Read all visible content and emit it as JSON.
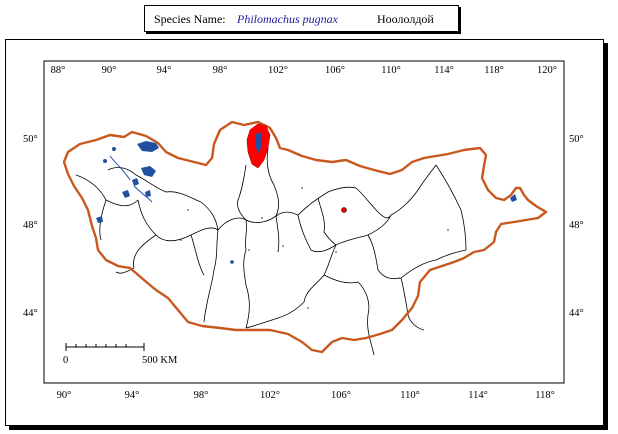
{
  "header": {
    "label": "Species Name:",
    "scientific_name": "Philomachus pugnax",
    "local_name": "Ноололдой"
  },
  "map": {
    "top_longitudes": [
      "88°",
      "90°",
      "94°",
      "98°",
      "102°",
      "106°",
      "110°",
      "114°",
      "118°",
      "120°"
    ],
    "bottom_longitudes": [
      "90°",
      "94°",
      "98°",
      "102°",
      "106°",
      "110°",
      "114°",
      "118°"
    ],
    "left_latitudes": [
      "50°",
      "48°",
      "44°"
    ],
    "right_latitudes": [
      "50°",
      "48°",
      "44°"
    ],
    "scale_bar": {
      "start_label": "0",
      "end_label": "500 KM"
    },
    "colors": {
      "border": "#c8581e",
      "range": "#ff0000",
      "water": "#1f4f9e",
      "internal": "#000000"
    }
  }
}
